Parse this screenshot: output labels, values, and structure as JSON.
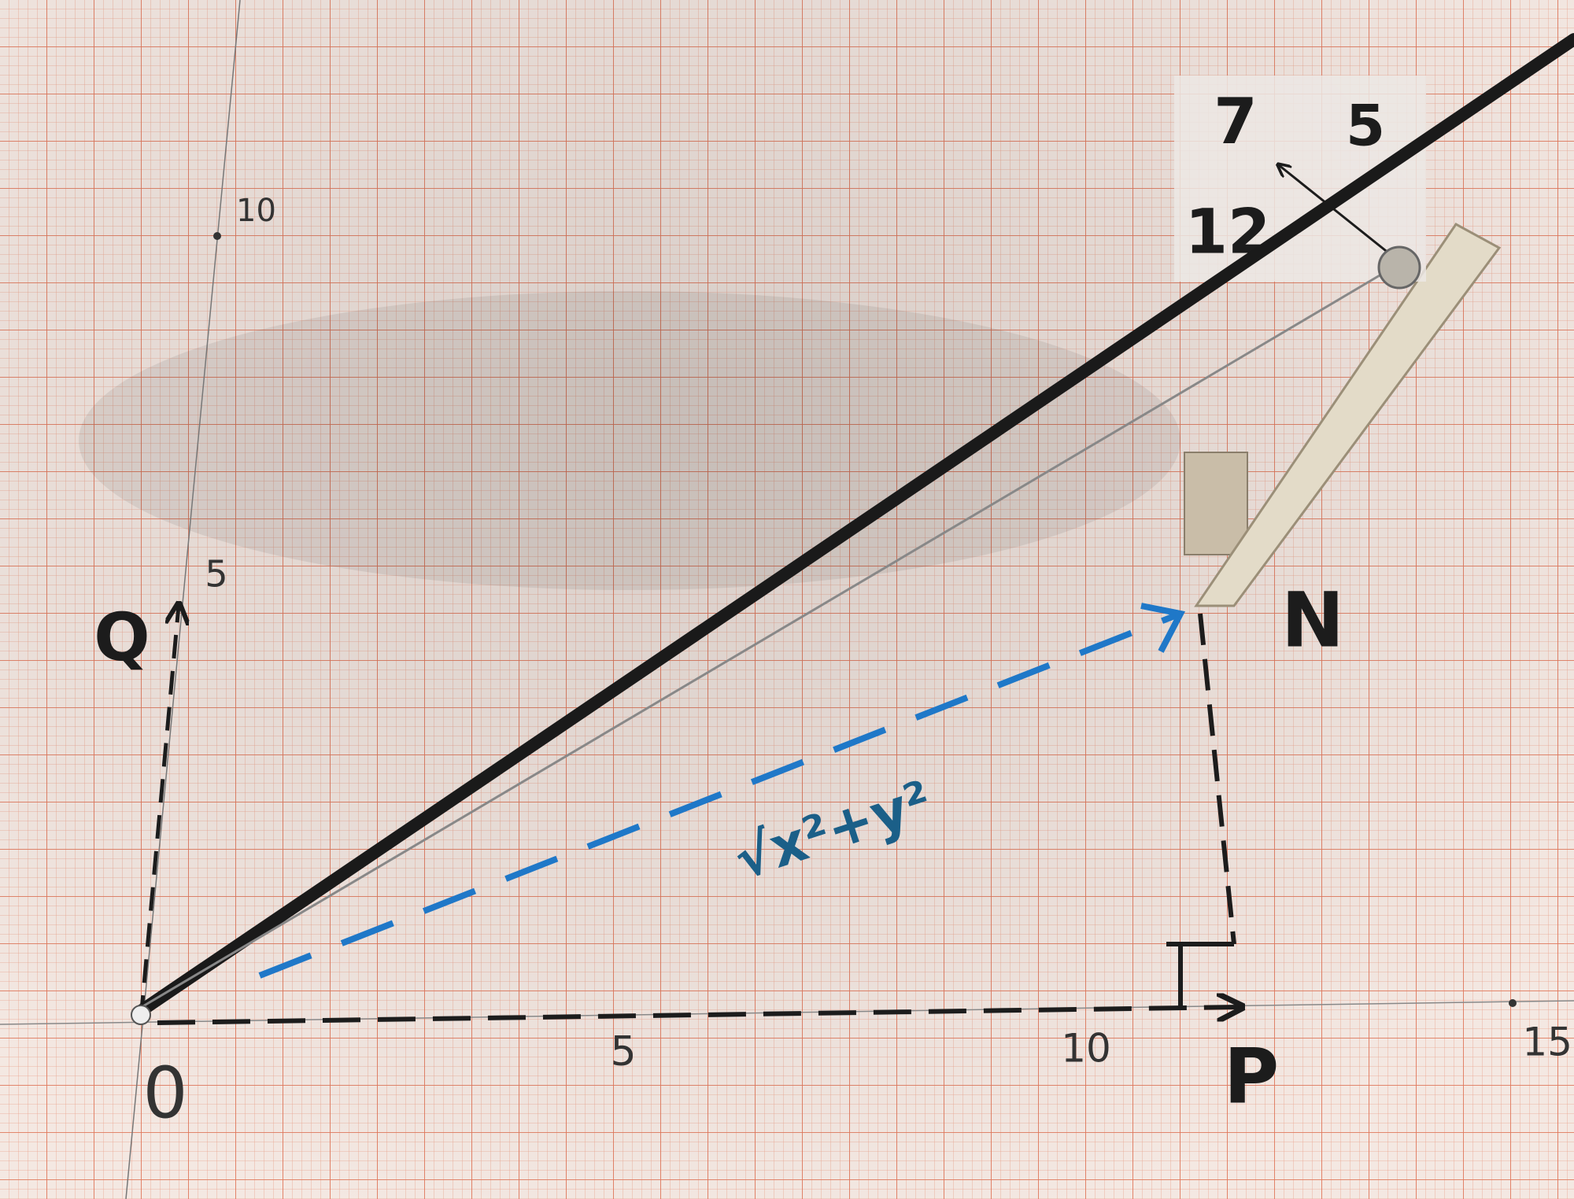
{
  "note_card": {
    "top_left": "7",
    "top_right": "5",
    "bottom": "12"
  },
  "axis_labels": {
    "y_10": "10",
    "y_5": "5",
    "origin": "0",
    "x_5": "5",
    "x_10": "10",
    "x_15": "15"
  },
  "points": {
    "q": "Q",
    "n": "N",
    "p": "P"
  },
  "formula": "√x²+y²"
}
